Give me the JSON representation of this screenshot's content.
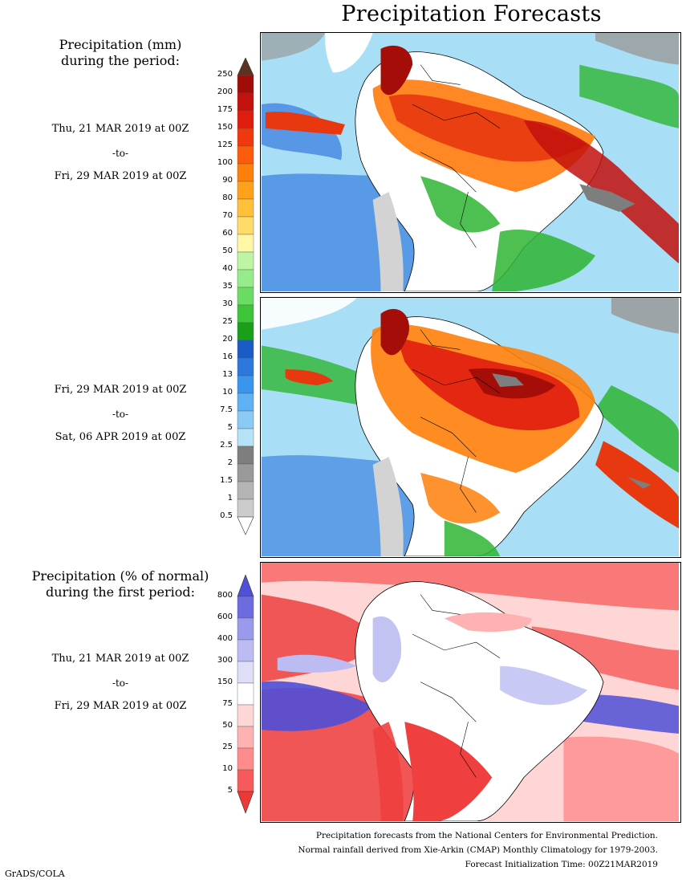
{
  "title": "Precipitation Forecasts",
  "legend_amount": {
    "heading_line1": "Precipitation (mm)",
    "heading_line2": "during the period:",
    "ticks": [
      "250",
      "200",
      "175",
      "150",
      "125",
      "100",
      "90",
      "80",
      "70",
      "60",
      "50",
      "40",
      "35",
      "30",
      "25",
      "20",
      "16",
      "13",
      "10",
      "7.5",
      "5",
      "2.5",
      "2",
      "1.5",
      "1",
      "0.5"
    ],
    "colors": [
      "#7a0a06",
      "#a10b08",
      "#c3110d",
      "#e01c0f",
      "#f0380f",
      "#fc5b0c",
      "#fe7f0a",
      "#ffa11b",
      "#ffc13a",
      "#ffdb6a",
      "#fff7a5",
      "#bdf5a5",
      "#96ec8a",
      "#6bdc63",
      "#3ec438",
      "#18a019",
      "#1a5cc6",
      "#2d78dc",
      "#3a95ec",
      "#5fb1f3",
      "#8ccaf6",
      "#b6e2f8",
      "#7e7e7e",
      "#9a9a9a",
      "#b4b4b4",
      "#cccccc",
      "#ffffff"
    ],
    "top_arrow_color": "#5c3322"
  },
  "legend_percent": {
    "heading_line1": "Precipitation (% of normal)",
    "heading_line2": "during the first period:",
    "ticks": [
      "800",
      "600",
      "400",
      "300",
      "150",
      "75",
      "50",
      "25",
      "10",
      "5"
    ],
    "colors": [
      "#4f4fd8",
      "#6c6ce0",
      "#9a9aec",
      "#bcbcf2",
      "#dedef9",
      "#ffffff",
      "#ffd6d6",
      "#ffb2b2",
      "#ff8c8c",
      "#f75a5a",
      "#ee3838"
    ]
  },
  "periods": [
    {
      "start": "Thu, 21 MAR 2019 at 00Z",
      "sep": "-to-",
      "end": "Fri, 29 MAR 2019 at 00Z"
    },
    {
      "start": "Fri, 29 MAR 2019 at 00Z",
      "sep": "-to-",
      "end": "Sat, 06 APR 2019 at 00Z"
    },
    {
      "start": "Thu, 21 MAR 2019 at 00Z",
      "sep": "-to-",
      "end": "Fri, 29 MAR 2019 at 00Z"
    }
  ],
  "maps": {
    "colors": {
      "ocean": "#a9dff6",
      "wet": "#e8380f",
      "very_wet": "#a50d08",
      "dry": "#ffffff",
      "green": "#2fb533",
      "gray": "#9a9a9a",
      "blue": "#3478de",
      "above": "#6a6ae4",
      "below": "#ef3f3f"
    }
  },
  "footer": {
    "line1": "Precipitation forecasts from the National Centers for Environmental Prediction.",
    "line2": "Normal rainfall derived from Xie-Arkin (CMAP) Monthly Climatology for 1979-2003.",
    "line3": "Forecast Initialization Time: 00Z21MAR2019"
  },
  "credit": "GrADS/COLA"
}
